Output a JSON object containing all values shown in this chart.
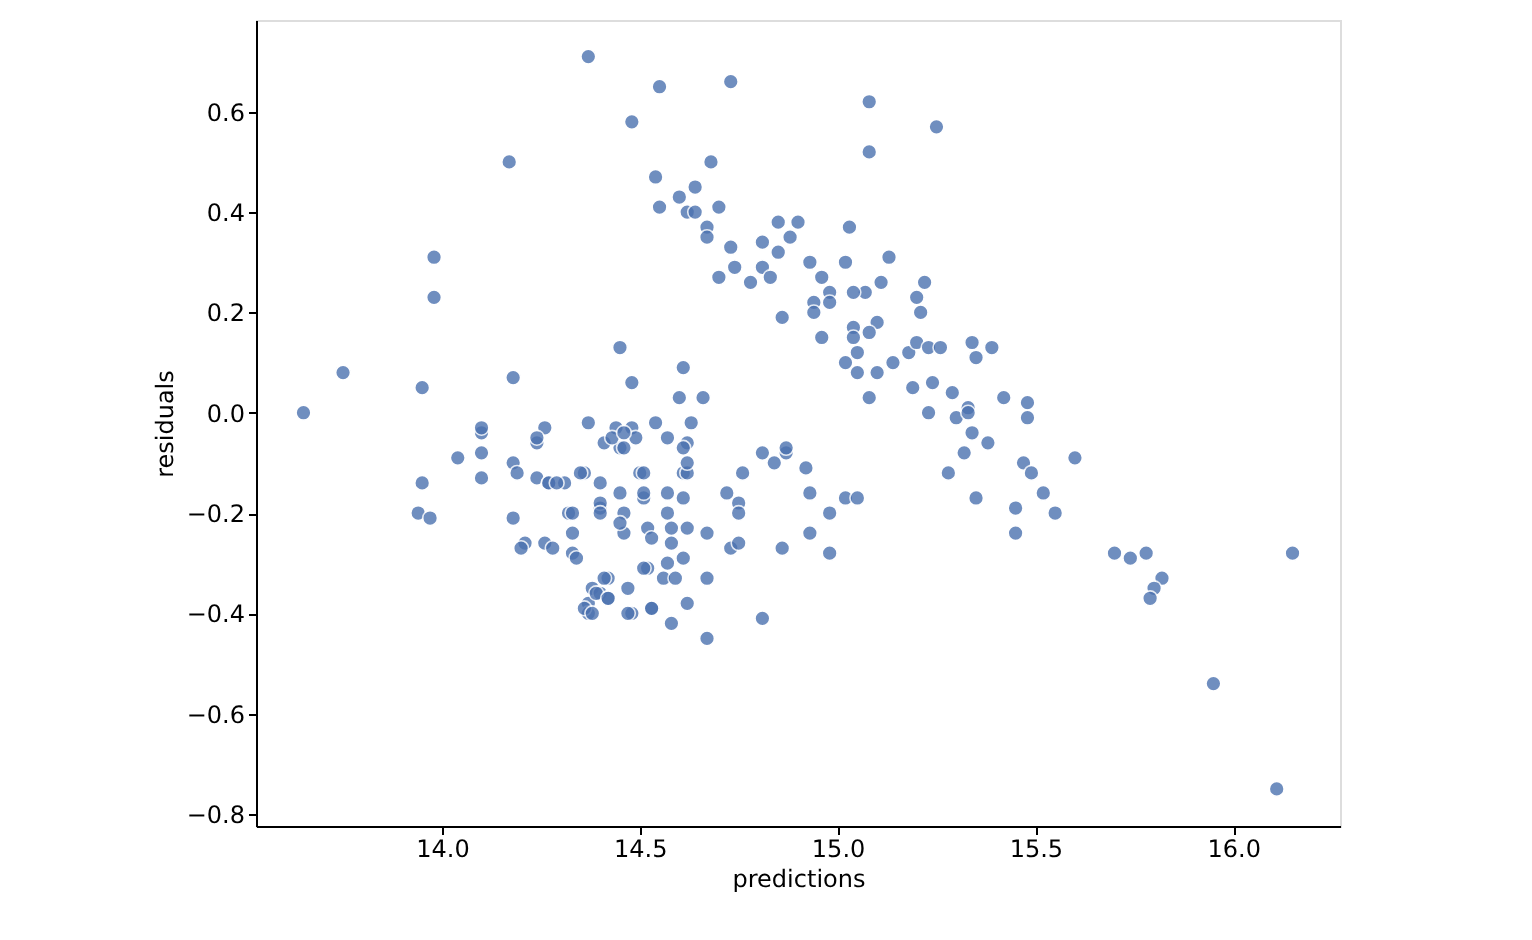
{
  "chart_data": {
    "type": "scatter",
    "xlabel": "predictions",
    "ylabel": "residuals",
    "grid": false,
    "xlim": [
      13.53,
      16.27
    ],
    "ylim": [
      -0.824,
      0.783
    ],
    "xticks": [
      {
        "value": 14.0,
        "label": "14.0"
      },
      {
        "value": 14.5,
        "label": "14.5"
      },
      {
        "value": 15.0,
        "label": "15.0"
      },
      {
        "value": 15.5,
        "label": "15.5"
      },
      {
        "value": 16.0,
        "label": "16.0"
      }
    ],
    "yticks": [
      {
        "value": -0.8,
        "label": "−0.8"
      },
      {
        "value": -0.6,
        "label": "−0.6"
      },
      {
        "value": -0.4,
        "label": "−0.4"
      },
      {
        "value": -0.2,
        "label": "−0.2"
      },
      {
        "value": 0.0,
        "label": "0.0"
      },
      {
        "value": 0.2,
        "label": "0.2"
      },
      {
        "value": 0.4,
        "label": "0.4"
      },
      {
        "value": 0.6,
        "label": "0.6"
      }
    ],
    "series": [
      {
        "color": "#4c72b0",
        "x": [
          13.65,
          13.75,
          13.95,
          13.95,
          13.94,
          13.97,
          13.98,
          13.98,
          14.04,
          14.1,
          14.1,
          14.1,
          14.17,
          14.18,
          14.18,
          14.18,
          14.19,
          14.21,
          14.2,
          14.24,
          14.26,
          14.24,
          14.27,
          14.31,
          14.26,
          14.28,
          14.32,
          14.33,
          14.33,
          14.34,
          14.36,
          14.37,
          14.37,
          14.38,
          14.37,
          14.4,
          14.4,
          14.41,
          14.4,
          14.42,
          14.42,
          14.37,
          14.44,
          14.45,
          14.45,
          14.48,
          14.46,
          14.46,
          14.47,
          14.48,
          14.49,
          14.5,
          14.51,
          14.52,
          14.48,
          14.52,
          14.53,
          14.48,
          14.55,
          14.73,
          15.08,
          15.25,
          15.08,
          14.68,
          14.54,
          14.64,
          14.6,
          14.55,
          14.7,
          14.62,
          14.64,
          14.67,
          14.67,
          14.73,
          14.74,
          14.7,
          14.78,
          14.81,
          14.85,
          14.9,
          14.88,
          14.85,
          14.81,
          14.83,
          15.03,
          15.13,
          15.02,
          14.93,
          14.96,
          15.11,
          15.22,
          15.2,
          15.07,
          15.04,
          14.98,
          14.94,
          14.98,
          15.21,
          14.86,
          14.94,
          15.1,
          15.04,
          15.08,
          14.96,
          15.04,
          15.05,
          15.02,
          15.05,
          15.1,
          15.14,
          15.18,
          15.2,
          15.23,
          15.26,
          15.34,
          15.39,
          15.35,
          15.24,
          15.19,
          15.08,
          15.29,
          15.33,
          15.23,
          15.3,
          14.61,
          14.6,
          14.66,
          14.54,
          14.63,
          15.42,
          15.48,
          15.48,
          14.1,
          14.24,
          14.43,
          14.46,
          14.46,
          14.27,
          14.29,
          14.35,
          14.45,
          14.33,
          14.4,
          14.4,
          14.45,
          14.41,
          14.39,
          14.42,
          14.36,
          14.38,
          14.47,
          14.57,
          14.62,
          14.61,
          14.51,
          14.61,
          14.62,
          14.62,
          14.51,
          14.57,
          14.61,
          14.57,
          14.58,
          14.62,
          14.67,
          14.53,
          14.58,
          14.61,
          14.57,
          14.51,
          14.56,
          14.59,
          14.67,
          14.62,
          14.53,
          14.58,
          14.67,
          14.81,
          14.72,
          14.75,
          14.75,
          14.73,
          14.75,
          14.76,
          14.81,
          14.84,
          14.87,
          14.87,
          14.92,
          14.93,
          14.86,
          14.93,
          14.98,
          15.02,
          15.05,
          14.98,
          15.33,
          15.34,
          15.38,
          15.32,
          15.28,
          15.35,
          15.47,
          15.49,
          15.6,
          15.45,
          15.52,
          15.55,
          15.45,
          15.7,
          15.74,
          15.78,
          15.82,
          15.8,
          15.79,
          16.15,
          15.95,
          16.11
        ],
        "values": [
          0.0,
          0.08,
          0.05,
          -0.14,
          -0.2,
          -0.21,
          0.31,
          0.23,
          -0.09,
          -0.04,
          -0.08,
          -0.13,
          0.5,
          0.07,
          -0.1,
          -0.21,
          -0.12,
          -0.26,
          -0.27,
          -0.06,
          -0.03,
          -0.13,
          -0.14,
          -0.14,
          -0.26,
          -0.27,
          -0.2,
          -0.24,
          -0.28,
          -0.29,
          -0.12,
          -0.02,
          -0.38,
          -0.35,
          -0.4,
          -0.14,
          -0.19,
          -0.06,
          -0.36,
          -0.33,
          -0.37,
          0.71,
          -0.03,
          0.13,
          -0.07,
          -0.03,
          -0.2,
          -0.24,
          -0.35,
          0.06,
          -0.05,
          -0.12,
          -0.17,
          -0.23,
          -0.4,
          -0.31,
          -0.39,
          0.58,
          0.65,
          0.66,
          0.62,
          0.57,
          0.52,
          0.5,
          0.47,
          0.45,
          0.43,
          0.41,
          0.41,
          0.4,
          0.4,
          0.37,
          0.35,
          0.33,
          0.29,
          0.27,
          0.26,
          0.34,
          0.38,
          0.38,
          0.35,
          0.32,
          0.29,
          0.27,
          0.37,
          0.31,
          0.3,
          0.3,
          0.27,
          0.26,
          0.26,
          0.23,
          0.24,
          0.24,
          0.24,
          0.22,
          0.22,
          0.2,
          0.19,
          0.2,
          0.18,
          0.17,
          0.16,
          0.15,
          0.15,
          0.12,
          0.1,
          0.08,
          0.08,
          0.1,
          0.12,
          0.14,
          0.13,
          0.13,
          0.14,
          0.13,
          0.11,
          0.06,
          0.05,
          0.03,
          0.04,
          0.01,
          0.0,
          -0.01,
          0.09,
          0.03,
          0.03,
          -0.02,
          -0.02,
          0.03,
          0.02,
          -0.01,
          -0.03,
          -0.05,
          -0.05,
          -0.04,
          -0.07,
          -0.14,
          -0.14,
          -0.12,
          -0.16,
          -0.2,
          -0.18,
          -0.2,
          -0.22,
          -0.33,
          -0.36,
          -0.37,
          -0.39,
          -0.4,
          -0.4,
          -0.05,
          -0.06,
          -0.07,
          -0.12,
          -0.12,
          -0.12,
          -0.1,
          -0.16,
          -0.16,
          -0.17,
          -0.2,
          -0.23,
          -0.23,
          -0.24,
          -0.25,
          -0.26,
          -0.29,
          -0.3,
          -0.31,
          -0.33,
          -0.33,
          -0.33,
          -0.38,
          -0.39,
          -0.42,
          -0.45,
          -0.41,
          -0.16,
          -0.18,
          -0.2,
          -0.27,
          -0.26,
          -0.12,
          -0.08,
          -0.1,
          -0.08,
          -0.07,
          -0.11,
          -0.16,
          -0.27,
          -0.24,
          -0.2,
          -0.17,
          -0.17,
          -0.28,
          0.0,
          -0.04,
          -0.06,
          -0.08,
          -0.12,
          -0.17,
          -0.1,
          -0.12,
          -0.09,
          -0.19,
          -0.16,
          -0.2,
          -0.24,
          -0.28,
          -0.29,
          -0.28,
          -0.33,
          -0.35,
          -0.37,
          -0.28,
          -0.54,
          -0.75
        ]
      }
    ]
  }
}
